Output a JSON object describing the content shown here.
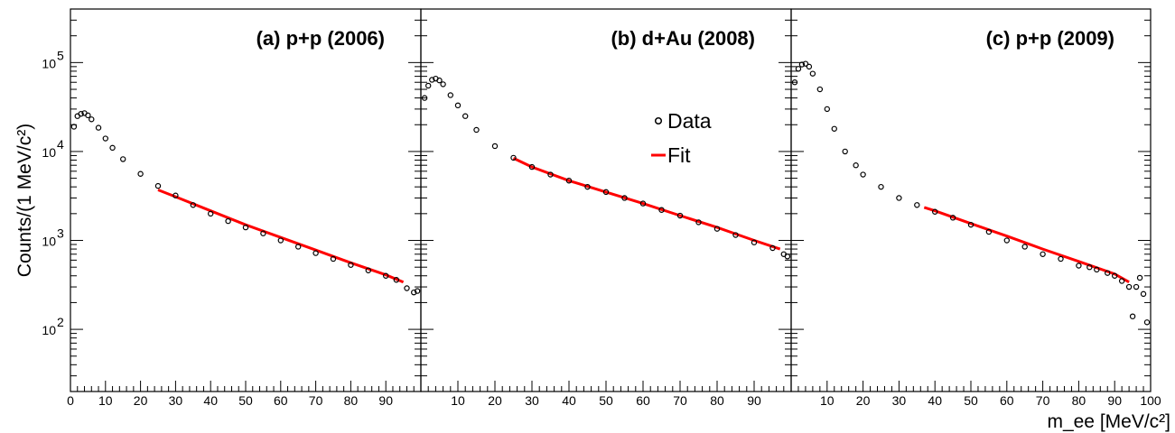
{
  "chart_data": {
    "type": "scatter",
    "y_scale": "log",
    "ylim": [
      20,
      400000
    ],
    "ylabel": "Counts/(1 MeV/c²)",
    "xlabel": "m_ee [MeV/c²]",
    "legend": {
      "placement": "panel-b-right",
      "entries": [
        {
          "label": "Data",
          "marker": "open-circle",
          "color": "#000000"
        },
        {
          "label": "Fit",
          "marker": "line",
          "color": "#ff0000"
        }
      ]
    },
    "y_tick_labels": [
      {
        "mantissa": "10",
        "exp": "2",
        "value": 100
      },
      {
        "mantissa": "10",
        "exp": "3",
        "value": 1000
      },
      {
        "mantissa": "10",
        "exp": "4",
        "value": 10000
      },
      {
        "mantissa": "10",
        "exp": "5",
        "value": 100000
      }
    ],
    "panels": [
      {
        "title": "(a) p+p (2006)",
        "xlim": [
          0,
          100
        ],
        "x_tick_labels": [
          "0",
          "10",
          "20",
          "30",
          "40",
          "50",
          "60",
          "70",
          "80",
          "90"
        ],
        "x_tick_values": [
          0,
          10,
          20,
          30,
          40,
          50,
          60,
          70,
          80,
          90
        ],
        "data": {
          "x": [
            1,
            2,
            3,
            4,
            5,
            6,
            8,
            10,
            12,
            15,
            20,
            25,
            30,
            35,
            40,
            45,
            50,
            55,
            60,
            65,
            70,
            75,
            80,
            85,
            90,
            93,
            96,
            98,
            99
          ],
          "y": [
            19000,
            25000,
            26500,
            27000,
            25500,
            23000,
            18500,
            14000,
            11000,
            8200,
            5600,
            4100,
            3200,
            2500,
            2000,
            1650,
            1400,
            1200,
            1000,
            850,
            720,
            620,
            530,
            460,
            400,
            360,
            290,
            260,
            270
          ]
        },
        "fit": {
          "x": [
            25,
            30,
            40,
            50,
            60,
            70,
            80,
            90,
            95
          ],
          "y": [
            3700,
            3100,
            2150,
            1500,
            1080,
            780,
            560,
            410,
            340
          ]
        }
      },
      {
        "title": "(b) d+Au (2008)",
        "xlim": [
          0,
          100
        ],
        "x_tick_labels": [
          "10",
          "20",
          "30",
          "40",
          "50",
          "60",
          "70",
          "80",
          "90"
        ],
        "x_tick_values": [
          10,
          20,
          30,
          40,
          50,
          60,
          70,
          80,
          90
        ],
        "data": {
          "x": [
            1,
            2,
            3,
            4,
            5,
            6,
            8,
            10,
            12,
            15,
            20,
            25,
            30,
            35,
            40,
            45,
            50,
            55,
            60,
            65,
            70,
            75,
            80,
            85,
            90,
            95,
            98,
            99
          ],
          "y": [
            40000,
            55000,
            64000,
            66000,
            63000,
            57000,
            43000,
            33000,
            25000,
            17500,
            11500,
            8500,
            6700,
            5500,
            4700,
            4000,
            3500,
            3000,
            2600,
            2200,
            1900,
            1600,
            1350,
            1150,
            950,
            820,
            700,
            660
          ]
        },
        "fit": {
          "x": [
            25,
            30,
            40,
            50,
            60,
            70,
            80,
            90,
            97
          ],
          "y": [
            8400,
            6700,
            4700,
            3500,
            2600,
            1900,
            1400,
            1000,
            800
          ]
        }
      },
      {
        "title": "(c) p+p (2009)",
        "xlim": [
          0,
          100
        ],
        "x_tick_labels": [
          "10",
          "20",
          "30",
          "40",
          "50",
          "60",
          "70",
          "80",
          "90",
          "100"
        ],
        "x_tick_values": [
          10,
          20,
          30,
          40,
          50,
          60,
          70,
          80,
          90,
          100
        ],
        "data": {
          "x": [
            1,
            2,
            3,
            4,
            5,
            6,
            8,
            10,
            12,
            15,
            18,
            20,
            25,
            30,
            35,
            40,
            45,
            50,
            55,
            60,
            65,
            70,
            75,
            80,
            83,
            85,
            88,
            90,
            92,
            94,
            95,
            96,
            97,
            98,
            99
          ],
          "y": [
            60000,
            85000,
            95000,
            97000,
            90000,
            75000,
            50000,
            30000,
            18000,
            10000,
            7000,
            5500,
            4000,
            3000,
            2500,
            2100,
            1800,
            1500,
            1250,
            1000,
            850,
            700,
            620,
            520,
            500,
            470,
            430,
            400,
            350,
            300,
            140,
            300,
            380,
            250,
            120
          ]
        },
        "fit": {
          "x": [
            37,
            40,
            50,
            60,
            70,
            80,
            90,
            94
          ],
          "y": [
            2350,
            2150,
            1550,
            1120,
            800,
            580,
            420,
            340
          ]
        }
      }
    ]
  }
}
